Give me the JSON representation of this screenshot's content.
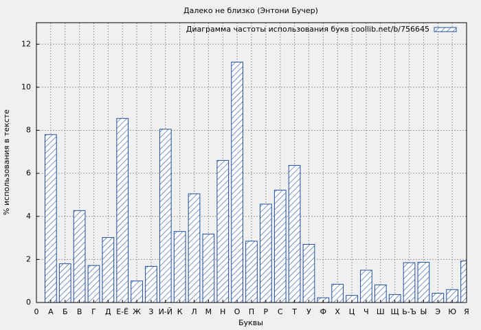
{
  "chart_data": {
    "type": "bar",
    "title": "Далеко не близко (Энтони Бучер)",
    "x_label": "Буквы",
    "y_label": "% использования в тексте",
    "categories": [
      "0",
      "А",
      "Б",
      "В",
      "Г",
      "Д",
      "Е-Ё",
      "Ж",
      "З",
      "И-Й",
      "К",
      "Л",
      "М",
      "Н",
      "О",
      "П",
      "Р",
      "С",
      "Т",
      "У",
      "Ф",
      "Х",
      "Ц",
      "Ч",
      "Ш",
      "Щ",
      "Ь-Ъ",
      "Ы",
      "Э",
      "Ю",
      "Я"
    ],
    "series": [
      {
        "name": "Диаграмма частоты использования букв coollib.net/b/756645",
        "color": "#1f4e9c",
        "values": [
          null,
          7.8,
          1.8,
          4.27,
          1.72,
          3.02,
          8.55,
          1.0,
          1.68,
          8.05,
          3.3,
          5.05,
          3.18,
          6.6,
          11.17,
          2.85,
          4.57,
          5.22,
          6.37,
          2.7,
          0.22,
          0.85,
          0.33,
          1.5,
          0.82,
          0.37,
          1.85,
          1.87,
          0.43,
          0.6,
          1.93
        ]
      }
    ],
    "ylim": [
      0,
      13
    ],
    "yticks": [
      0,
      2,
      4,
      6,
      8,
      10,
      12
    ],
    "grid": true,
    "legend": "top-right"
  }
}
